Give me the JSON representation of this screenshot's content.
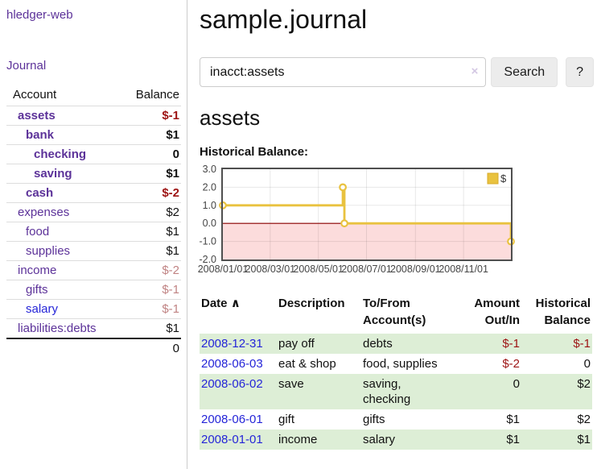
{
  "app": {
    "title": "hledger-web"
  },
  "sidebar": {
    "journal_link": "Journal",
    "accounts": {
      "header_account": "Account",
      "header_balance": "Balance",
      "rows": [
        {
          "name": "assets",
          "balance": "$-1",
          "indent": 0,
          "bold": true,
          "link_color": "purple",
          "balance_class": "neg-strong"
        },
        {
          "name": "bank",
          "balance": "$1",
          "indent": 1,
          "bold": true,
          "link_color": "purple",
          "balance_class": ""
        },
        {
          "name": "checking",
          "balance": "0",
          "indent": 2,
          "bold": true,
          "link_color": "purple",
          "balance_class": ""
        },
        {
          "name": "saving",
          "balance": "$1",
          "indent": 2,
          "bold": true,
          "link_color": "purple",
          "balance_class": ""
        },
        {
          "name": "cash",
          "balance": "$-2",
          "indent": 1,
          "bold": true,
          "link_color": "purple",
          "balance_class": "neg-strong"
        },
        {
          "name": "expenses",
          "balance": "$2",
          "indent": 0,
          "bold": false,
          "link_color": "purple",
          "balance_class": ""
        },
        {
          "name": "food",
          "balance": "$1",
          "indent": 1,
          "bold": false,
          "link_color": "purple",
          "balance_class": ""
        },
        {
          "name": "supplies",
          "balance": "$1",
          "indent": 1,
          "bold": false,
          "link_color": "purple",
          "balance_class": ""
        },
        {
          "name": "income",
          "balance": "$-2",
          "indent": 0,
          "bold": false,
          "link_color": "purple",
          "balance_class": "neg-soft"
        },
        {
          "name": "gifts",
          "balance": "$-1",
          "indent": 1,
          "bold": false,
          "link_color": "purple",
          "balance_class": "neg-soft"
        },
        {
          "name": "salary",
          "balance": "$-1",
          "indent": 1,
          "bold": false,
          "link_color": "blue",
          "balance_class": "neg-soft"
        },
        {
          "name": "liabilities:debts",
          "balance": "$1",
          "indent": 0,
          "bold": false,
          "link_color": "purple",
          "balance_class": ""
        }
      ],
      "total": "0"
    }
  },
  "main": {
    "title": "sample.journal",
    "search": {
      "value": "inacct:assets",
      "clear_icon": "×",
      "button_label": "Search",
      "help_label": "?"
    },
    "account_heading": "assets",
    "chart_heading": "Historical Balance:"
  },
  "chart_data": {
    "type": "line",
    "title": "Historical Balance:",
    "series": [
      {
        "name": "$",
        "color": "#e9c23f",
        "step": true,
        "points": [
          {
            "date": "2008-01-01",
            "value": 1
          },
          {
            "date": "2008-06-01",
            "value": 2
          },
          {
            "date": "2008-06-03",
            "value": 0
          },
          {
            "date": "2008-12-31",
            "value": -1
          }
        ]
      }
    ],
    "x_range": [
      "2008-01-01",
      "2008-12-31"
    ],
    "x_ticks": [
      "2008/01/01",
      "2008/03/01",
      "2008/05/01",
      "2008/07/01",
      "2008/09/01",
      "2008/11/01"
    ],
    "y_ticks": [
      3.0,
      2.0,
      1.0,
      0.0,
      -1.0,
      -2.0
    ],
    "ylim": [
      -2,
      3
    ],
    "grid": true,
    "legend_position": "top-right",
    "legend_label": "$",
    "negative_region_color": "#fcdcdc",
    "zero_line_color": "#8b0000",
    "border_color": "#4f4f4f"
  },
  "register": {
    "headers": {
      "date": "Date",
      "sort_arrow": "∧",
      "description": "Description",
      "accounts_line1": "To/From",
      "accounts_line2": "Account(s)",
      "amount_line1": "Amount",
      "amount_line2": "Out/In",
      "balance_line1": "Historical",
      "balance_line2": "Balance"
    },
    "rows": [
      {
        "date": "2008-12-31",
        "description": "pay off",
        "accounts": "debts",
        "amount": "$-1",
        "amount_negative": true,
        "balance": "$-1",
        "balance_negative": true,
        "shaded": true
      },
      {
        "date": "2008-06-03",
        "description": "eat & shop",
        "accounts": "food, supplies",
        "amount": "$-2",
        "amount_negative": true,
        "balance": "0",
        "balance_negative": false,
        "shaded": false
      },
      {
        "date": "2008-06-02",
        "description": "save",
        "accounts": "saving, checking",
        "amount": "0",
        "amount_negative": false,
        "balance": "$2",
        "balance_negative": false,
        "shaded": true
      },
      {
        "date": "2008-06-01",
        "description": "gift",
        "accounts": "gifts",
        "amount": "$1",
        "amount_negative": false,
        "balance": "$2",
        "balance_negative": false,
        "shaded": false
      },
      {
        "date": "2008-01-01",
        "description": "income",
        "accounts": "salary",
        "amount": "$1",
        "amount_negative": false,
        "balance": "$1",
        "balance_negative": false,
        "shaded": true
      }
    ]
  },
  "colors": {
    "link_purple": "#5c3299",
    "link_blue": "#2525d8",
    "negative_strong": "#9d1313",
    "negative_soft": "#c08383",
    "row_shade_green": "#ddeed6",
    "chart_gold": "#e9c23f"
  }
}
